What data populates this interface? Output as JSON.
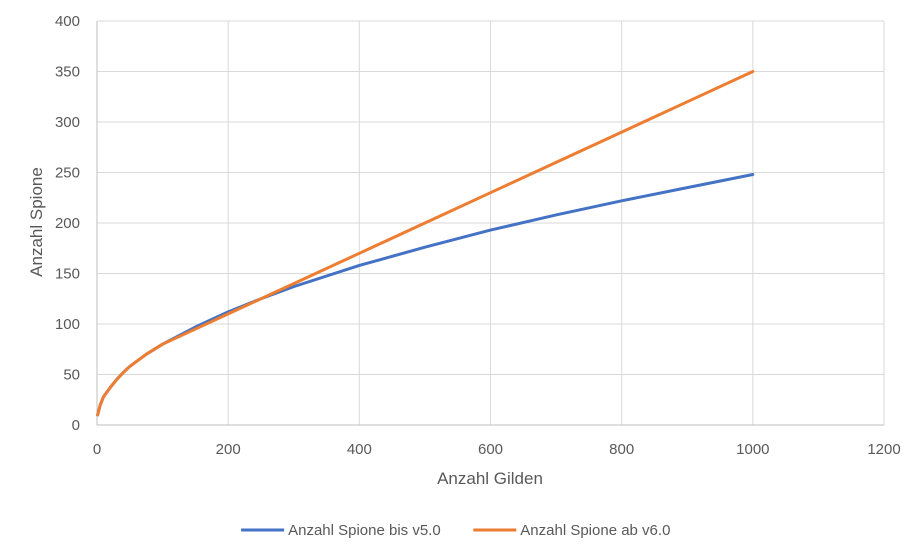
{
  "chart_data": {
    "type": "line",
    "title": "",
    "xlabel": "Anzahl Gilden",
    "ylabel": "Anzahl Spione",
    "xlim": [
      0,
      1200
    ],
    "ylim": [
      0,
      400
    ],
    "xticks": [
      "0",
      "200",
      "400",
      "600",
      "800",
      "1000",
      "1200"
    ],
    "yticks": [
      "0",
      "50",
      "100",
      "150",
      "200",
      "250",
      "300",
      "350",
      "400"
    ],
    "grid": true,
    "legend_position": "bottom",
    "series": [
      {
        "name": "Anzahl Spione bis v5.0",
        "color": "#4472c4",
        "x": [
          1,
          5,
          10,
          20,
          30,
          40,
          50,
          75,
          100,
          150,
          200,
          250,
          300,
          400,
          500,
          600,
          700,
          800,
          900,
          1000
        ],
        "y": [
          10,
          20,
          28,
          37,
          45,
          52,
          58,
          70,
          80,
          97,
          112,
          125,
          137,
          158,
          176,
          193,
          208,
          222,
          235,
          248
        ]
      },
      {
        "name": "Anzahl Spione ab v6.0",
        "color": "#ed7d31",
        "x": [
          1,
          5,
          10,
          20,
          30,
          40,
          50,
          75,
          100,
          150,
          200,
          250,
          300,
          400,
          500,
          600,
          700,
          800,
          900,
          1000
        ],
        "y": [
          10,
          20,
          28,
          37,
          45,
          52,
          58,
          70,
          80,
          95,
          110,
          125,
          140,
          170,
          200,
          230,
          260,
          290,
          320,
          350
        ]
      }
    ]
  }
}
